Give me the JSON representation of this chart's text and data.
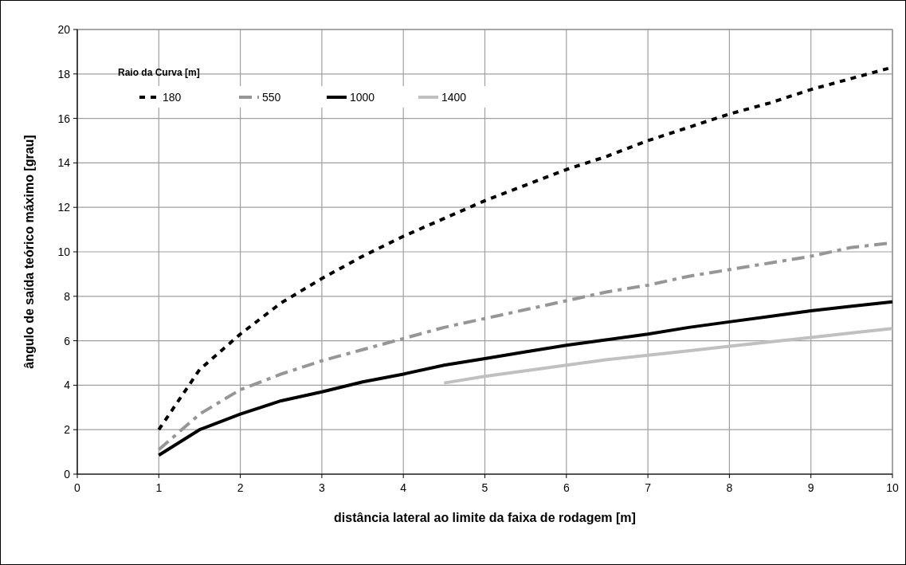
{
  "chart_data": {
    "type": "line",
    "xlabel": "distância lateral ao limite da faixa de rodagem [m]",
    "ylabel": "ângulo de saída teórico máximo [grau]",
    "legend_title": "Raio da Curva [m]",
    "legend": "top left",
    "grid": true,
    "xlim": [
      0,
      10
    ],
    "xticks": [
      0,
      1,
      2,
      3,
      4,
      5,
      6,
      7,
      8,
      9,
      10
    ],
    "ylim": [
      0,
      20
    ],
    "yticks": [
      0,
      2,
      4,
      6,
      8,
      10,
      12,
      14,
      16,
      18,
      20
    ],
    "x": [
      1,
      1.5,
      2,
      2.5,
      3,
      3.5,
      4,
      4.5,
      5,
      5.5,
      6,
      6.5,
      7,
      7.5,
      8,
      8.5,
      9,
      9.5,
      10
    ],
    "series": [
      {
        "name": "180",
        "color": "#000000",
        "line_style": "dotted",
        "values": [
          2.0,
          4.7,
          6.3,
          7.7,
          8.8,
          9.8,
          10.7,
          11.5,
          12.3,
          13.0,
          13.7,
          14.3,
          15.0,
          15.6,
          16.2,
          16.7,
          17.3,
          17.8,
          18.3
        ]
      },
      {
        "name": "550",
        "color": "#969696",
        "line_style": "dashed",
        "values": [
          1.1,
          2.7,
          3.8,
          4.5,
          5.1,
          5.6,
          6.1,
          6.6,
          7.0,
          7.4,
          7.8,
          8.2,
          8.5,
          8.9,
          9.2,
          9.5,
          9.8,
          10.2,
          10.4
        ]
      },
      {
        "name": "1000",
        "color": "#000000",
        "line_style": "solid",
        "values": [
          0.85,
          2.0,
          2.7,
          3.3,
          3.7,
          4.15,
          4.5,
          4.9,
          5.2,
          5.5,
          5.8,
          6.05,
          6.3,
          6.6,
          6.85,
          7.1,
          7.35,
          7.55,
          7.75
        ]
      },
      {
        "name": "1400",
        "color": "#c0c0c0",
        "line_style": "solid",
        "values": [
          null,
          null,
          null,
          null,
          null,
          null,
          null,
          4.1,
          4.4,
          4.65,
          4.9,
          5.15,
          5.35,
          5.55,
          5.75,
          5.95,
          6.15,
          6.35,
          6.55
        ]
      }
    ]
  }
}
